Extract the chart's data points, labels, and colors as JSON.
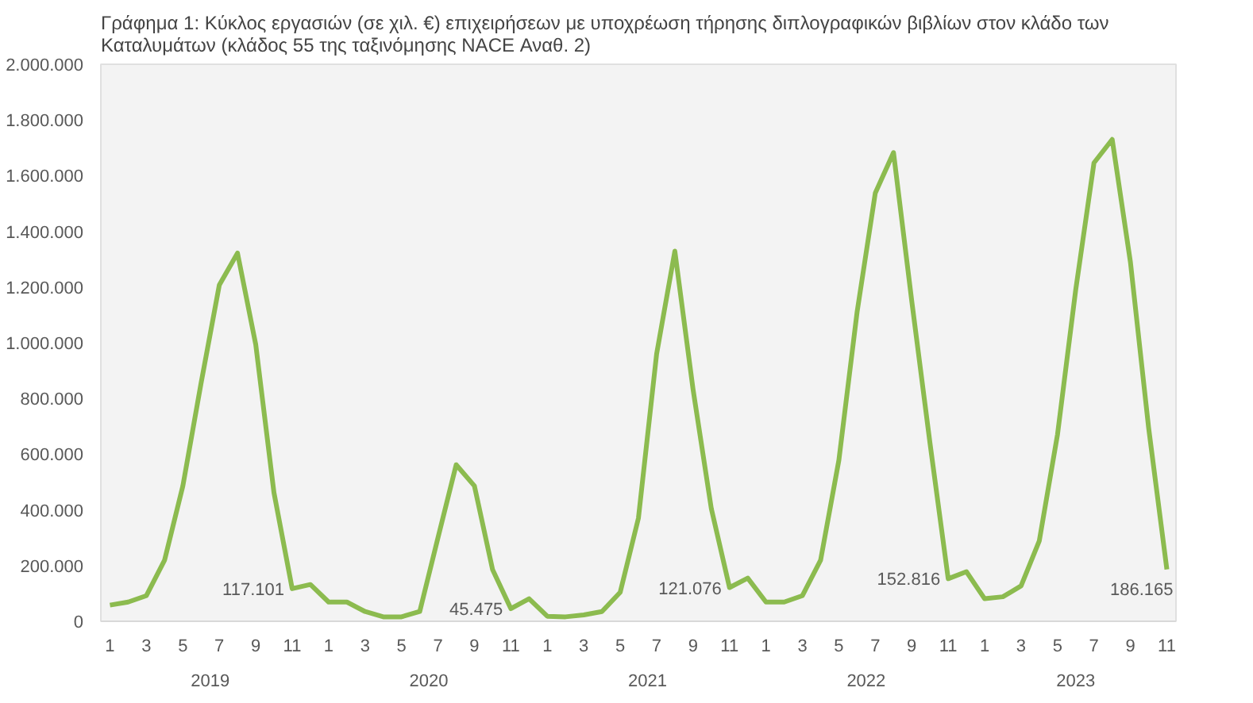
{
  "chart_data": {
    "type": "line",
    "title": "Γράφημα 1: Κύκλος εργασιών (σε χιλ. €) επιχειρήσεων με υποχρέωση τήρησης διπλογραφικών βιβλίων στον κλάδο των Καταλυμάτων (κλάδος 55 της ταξινόμησης NACE Αναθ. 2)",
    "categories": [
      "1",
      null,
      "3",
      null,
      "5",
      null,
      "7",
      null,
      "9",
      null,
      "11",
      null,
      "1",
      null,
      "3",
      null,
      "5",
      null,
      "7",
      null,
      "9",
      null,
      "11",
      null,
      "1",
      null,
      "3",
      null,
      "5",
      null,
      "7",
      null,
      "9",
      null,
      "11",
      null,
      "1",
      null,
      "3",
      null,
      "5",
      null,
      "7",
      null,
      "9",
      null,
      "11",
      null,
      "1",
      null,
      "3",
      null,
      "5",
      null,
      "7",
      null,
      "9",
      null,
      "11"
    ],
    "annotations": [
      "2019",
      "2020",
      "2021",
      "2022",
      "2023"
    ],
    "series": [
      {
        "color": "#8cbb4f",
        "values": [
          58000,
          69000,
          92000,
          220000,
          486000,
          855000,
          1207000,
          1322000,
          994000,
          462000,
          117101,
          132000,
          69000,
          69000,
          35000,
          16000,
          16000,
          35000,
          300000,
          562000,
          486000,
          185000,
          45475,
          81000,
          18000,
          16000,
          23000,
          35000,
          104000,
          370000,
          960000,
          1329000,
          832000,
          405000,
          121076,
          155000,
          69000,
          69000,
          92000,
          220000,
          578000,
          1110000,
          1538000,
          1683000,
          1150000,
          640000,
          152816,
          178000,
          81000,
          88000,
          127000,
          289000,
          671000,
          1191000,
          1646000,
          1730000,
          1290000,
          694000,
          186165
        ],
        "value_labels": [
          null,
          null,
          null,
          null,
          null,
          null,
          null,
          null,
          null,
          null,
          "117.101",
          null,
          null,
          null,
          null,
          null,
          null,
          null,
          null,
          null,
          null,
          null,
          "45.475",
          null,
          null,
          null,
          null,
          null,
          null,
          null,
          null,
          null,
          null,
          null,
          "121.076",
          null,
          null,
          null,
          null,
          null,
          null,
          null,
          null,
          null,
          null,
          null,
          "152.816",
          null,
          null,
          null,
          null,
          null,
          null,
          null,
          null,
          null,
          null,
          null,
          "186.165"
        ]
      }
    ],
    "ylim": [
      0,
      2000000
    ],
    "yticks": [
      {
        "value": 0,
        "label": "0"
      },
      {
        "value": 200000,
        "label": "200.000"
      },
      {
        "value": 400000,
        "label": "400.000"
      },
      {
        "value": 600000,
        "label": "600.000"
      },
      {
        "value": 800000,
        "label": "800.000"
      },
      {
        "value": 1000000,
        "label": "1.000.000"
      },
      {
        "value": 1200000,
        "label": "1.200.000"
      },
      {
        "value": 1400000,
        "label": "1.400.000"
      },
      {
        "value": 1600000,
        "label": "1.600.000"
      },
      {
        "value": 1800000,
        "label": "1.800.000"
      },
      {
        "value": 2000000,
        "label": "2.000.000"
      }
    ],
    "grid": false,
    "line_style": "solid"
  }
}
